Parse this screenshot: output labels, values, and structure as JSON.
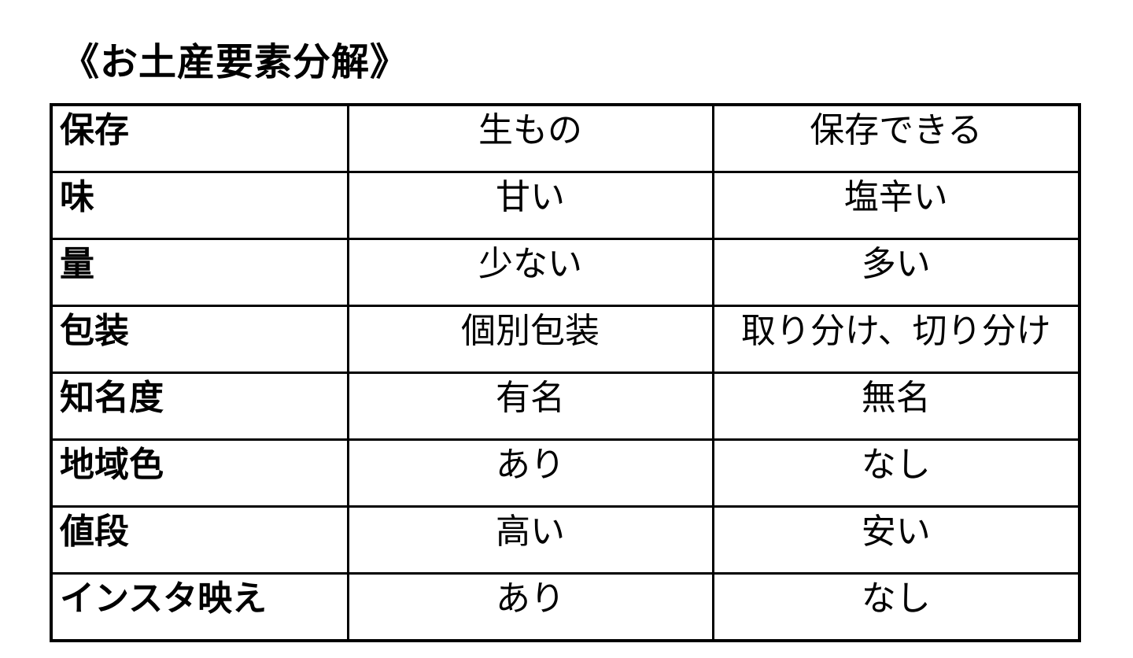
{
  "page": {
    "title": "《お土産要素分解》",
    "background_color": "#ffffff",
    "text_color": "#000000",
    "border_color": "#000000"
  },
  "table": {
    "rows": [
      {
        "label": "保存",
        "col1": "生もの",
        "col2": "保存できる"
      },
      {
        "label": "味",
        "col1": "甘い",
        "col2": "塩辛い"
      },
      {
        "label": "量",
        "col1": "少ない",
        "col2": "多い"
      },
      {
        "label": "包装",
        "col1": "個別包装",
        "col2": "取り分け、切り分け"
      },
      {
        "label": "知名度",
        "col1": "有名",
        "col2": "無名"
      },
      {
        "label": "地域色",
        "col1": "あり",
        "col2": "なし"
      },
      {
        "label": "値段",
        "col1": "高い",
        "col2": "安い"
      },
      {
        "label": "インスタ映え",
        "col1": "あり",
        "col2": "なし"
      }
    ]
  }
}
